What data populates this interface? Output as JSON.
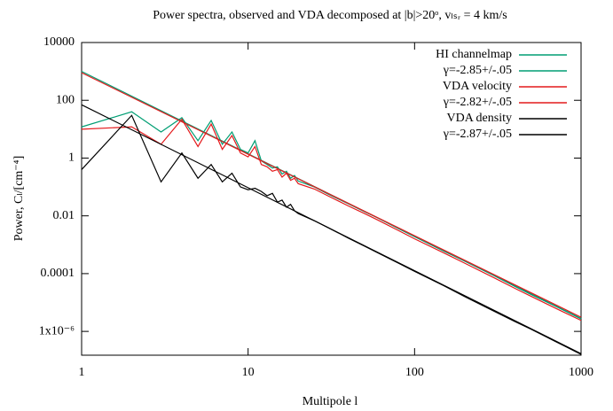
{
  "chart_data": {
    "type": "line",
    "title": "Power spectra, observed and VDA decomposed at |b|>20ᵒ, vₗₛᵣ = 4 km/s",
    "xlabel": "Multipole l",
    "ylabel": "Power, Cₗ/[cm⁻⁴]",
    "xscale": "log",
    "yscale": "log",
    "xlim": [
      1,
      1000
    ],
    "ylim": [
      1.5e-07,
      10000
    ],
    "xticks": [
      1,
      10,
      100,
      1000
    ],
    "yticks": [
      10000,
      100,
      1,
      0.01,
      0.0001,
      {
        "value": 1e-06,
        "label": "1x10⁻⁶"
      }
    ],
    "legend": "top-right",
    "series": [
      {
        "name": "HI channelmap",
        "color": "#009e73",
        "x": [
          1,
          2,
          3,
          4,
          5,
          6,
          7,
          8,
          9,
          10,
          11,
          12,
          13,
          14,
          15,
          16,
          17,
          18,
          19,
          20,
          25,
          30,
          40,
          50,
          60,
          80,
          100,
          150,
          200,
          300,
          400,
          500,
          700,
          1000
        ],
        "values": [
          12,
          40,
          8,
          25,
          4,
          20,
          3,
          8,
          2,
          1.5,
          4,
          0.8,
          0.6,
          0.45,
          0.5,
          0.28,
          0.35,
          0.2,
          0.25,
          0.16,
          0.1,
          0.058,
          0.026,
          0.014,
          0.0085,
          0.0036,
          0.0019,
          0.0006,
          0.00027,
          8.5e-05,
          3.6e-05,
          1.9e-05,
          7.5e-06,
          2.7e-06
        ]
      },
      {
        "name": "γ=-2.85+/-.05",
        "color": "#009e73",
        "x": [
          1,
          1000
        ],
        "values": [
          1000,
          2.8e-06
        ]
      },
      {
        "name": "VDA velocity",
        "color": "#e41a1c",
        "x": [
          1,
          2,
          3,
          4,
          5,
          6,
          7,
          8,
          9,
          10,
          11,
          12,
          13,
          14,
          15,
          16,
          17,
          18,
          19,
          20,
          25,
          30,
          40,
          50,
          60,
          80,
          100,
          150,
          200,
          300,
          400,
          500,
          700,
          1000
        ],
        "values": [
          10,
          12,
          3,
          22,
          2.5,
          15,
          2,
          6,
          1.5,
          1.1,
          2.5,
          0.6,
          0.5,
          0.35,
          0.4,
          0.22,
          0.3,
          0.17,
          0.2,
          0.13,
          0.085,
          0.05,
          0.022,
          0.012,
          0.0072,
          0.0031,
          0.0016,
          0.00052,
          0.00023,
          7.2e-05,
          3.1e-05,
          1.65e-05,
          6.4e-06,
          2.4e-06
        ]
      },
      {
        "name": "γ=-2.82+/-.05",
        "color": "#e41a1c",
        "x": [
          1,
          1000
        ],
        "values": [
          900,
          3.1e-06
        ]
      },
      {
        "name": "VDA density",
        "color": "#000000",
        "x": [
          1,
          2,
          3,
          4,
          5,
          6,
          7,
          8,
          9,
          10,
          11,
          12,
          13,
          14,
          15,
          16,
          17,
          18,
          19,
          20,
          25,
          30,
          40,
          50,
          60,
          80,
          100,
          150,
          200,
          300,
          400,
          500,
          700,
          1000
        ],
        "values": [
          0.4,
          30,
          0.15,
          1.5,
          0.2,
          0.6,
          0.15,
          0.3,
          0.1,
          0.08,
          0.09,
          0.07,
          0.05,
          0.06,
          0.03,
          0.035,
          0.02,
          0.025,
          0.015,
          0.012,
          0.0068,
          0.004,
          0.0017,
          0.0009,
          0.00053,
          0.00023,
          0.00012,
          3.8e-05,
          1.6e-05,
          5e-06,
          2.2e-06,
          1.2e-06,
          4.5e-07,
          1.6e-07
        ]
      },
      {
        "name": "γ=-2.87+/-.05",
        "color": "#000000",
        "x": [
          1,
          1000
        ],
        "values": [
          70,
          1.7e-07
        ]
      }
    ]
  }
}
